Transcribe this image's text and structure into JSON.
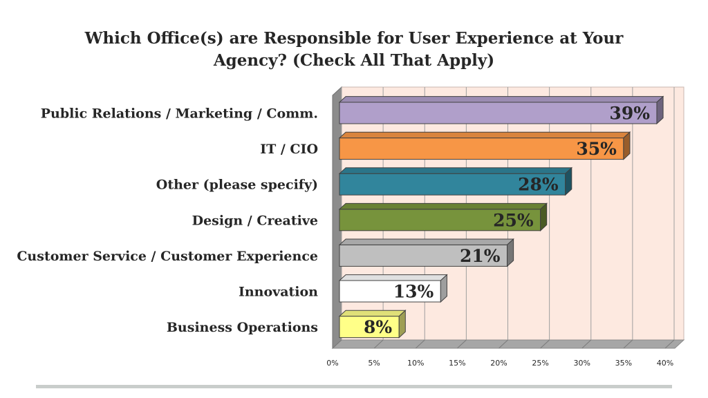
{
  "chart_data": {
    "type": "bar",
    "orientation": "horizontal",
    "title_lines": [
      "Which Office(s) are Responsible for User Experience at Your",
      "Agency? (Check All That Apply)"
    ],
    "categories": [
      "Public Relations / Marketing / Comm.",
      "IT / CIO",
      "Other (please specify)",
      "Design / Creative",
      "Customer Service / Customer Experience",
      "Innovation",
      "Business Operations"
    ],
    "values": [
      39,
      35,
      28,
      25,
      21,
      13,
      8
    ],
    "value_labels": [
      "39%",
      "35%",
      "28%",
      "25%",
      "21%",
      "13%",
      "8%"
    ],
    "colors": [
      "#b09fca",
      "#f79646",
      "#31859c",
      "#77933c",
      "#bfbfbf",
      "#ffffff",
      "#ffff88"
    ],
    "x_ticks": [
      "0%",
      "5%",
      "10%",
      "15%",
      "20%",
      "25%",
      "30%",
      "35%",
      "40%"
    ],
    "xlim": [
      0,
      40
    ],
    "grid": true,
    "wall_color": "#fde9e0",
    "floor_color": "#a6a6a6"
  }
}
